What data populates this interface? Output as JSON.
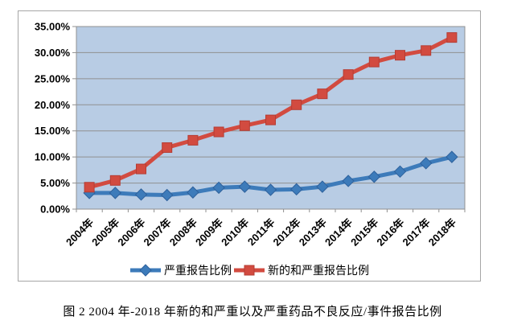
{
  "figure_caption": "图 2 2004 年-2018 年新的和严重以及严重药品不良反应/事件报告比例",
  "chart_data": {
    "type": "line",
    "title": "",
    "xlabel": "",
    "ylabel": "",
    "categories": [
      "2004年",
      "2005年",
      "2006年",
      "2007年",
      "2008年",
      "2009年",
      "2010年",
      "2011年",
      "2012年",
      "2013年",
      "2014年",
      "2015年",
      "2016年",
      "2017年",
      "2018年"
    ],
    "series": [
      {
        "name": "严重报告比例",
        "marker": "diamond",
        "color": "#3d7bba",
        "edge_color": "#2e619c",
        "values": [
          3.1,
          3.1,
          2.8,
          2.7,
          3.2,
          4.1,
          4.3,
          3.7,
          3.8,
          4.3,
          5.4,
          6.2,
          7.2,
          8.8,
          10.0
        ]
      },
      {
        "name": "新的和严重报告比例",
        "marker": "square",
        "color": "#d24b40",
        "edge_color": "#b53c33",
        "values": [
          4.2,
          5.5,
          7.7,
          11.8,
          13.2,
          14.8,
          16.0,
          17.1,
          20.0,
          22.1,
          25.8,
          28.2,
          29.5,
          30.4,
          32.9
        ]
      }
    ],
    "ylim": [
      0,
      35
    ],
    "y_tick_step": 5,
    "y_tick_labels": [
      "0.00%",
      "5.00%",
      "10.00%",
      "15.00%",
      "20.00%",
      "25.00%",
      "30.00%",
      "35.00%"
    ],
    "grid": true,
    "legend_position": "bottom",
    "plot_bg": "#b8ccE4",
    "grid_color": "#909090",
    "frame_color": "#a6a6a6",
    "label_color": "#000000"
  }
}
